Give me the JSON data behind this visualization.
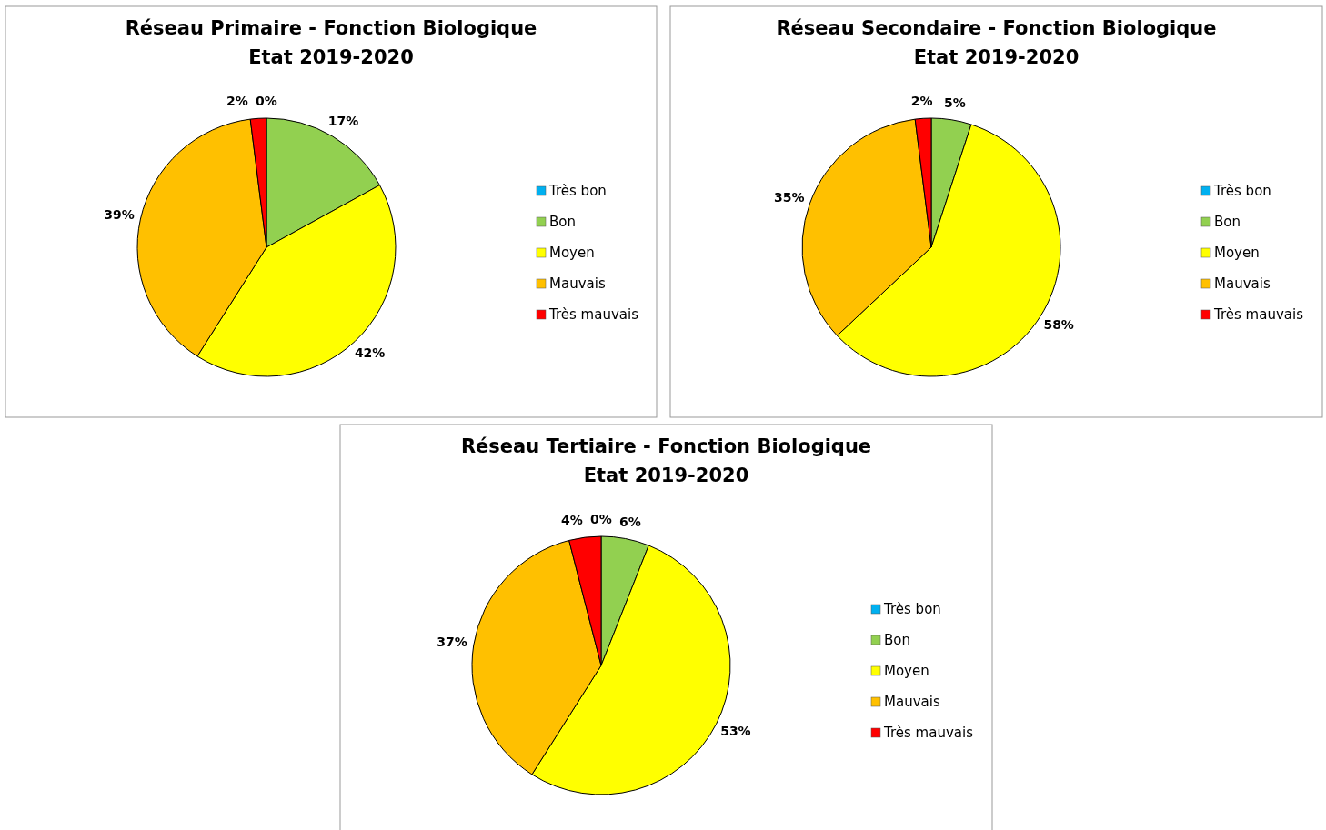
{
  "chart_data": [
    {
      "type": "pie",
      "title": "Réseau Primaire - Fonction Biologique",
      "subtitle": "Etat 2019-2020",
      "categories": [
        "Très bon",
        "Bon",
        "Moyen",
        "Mauvais",
        "Très mauvais"
      ],
      "values": [
        0,
        17,
        42,
        39,
        2
      ],
      "colors": [
        "#00b0f0",
        "#92d050",
        "#ffff00",
        "#ffc000",
        "#ff0000"
      ],
      "value_labels": [
        "0%",
        "17%",
        "42%",
        "39%",
        "2%"
      ],
      "legend": "right"
    },
    {
      "type": "pie",
      "title": "Réseau Secondaire - Fonction Biologique",
      "subtitle": "Etat 2019-2020",
      "categories": [
        "Très bon",
        "Bon",
        "Moyen",
        "Mauvais",
        "Très mauvais"
      ],
      "values": [
        0,
        5,
        58,
        35,
        2
      ],
      "colors": [
        "#00b0f0",
        "#92d050",
        "#ffff00",
        "#ffc000",
        "#ff0000"
      ],
      "value_labels": [
        null,
        "5%",
        "58%",
        "35%",
        "2%"
      ],
      "legend": "right"
    },
    {
      "type": "pie",
      "title": "Réseau Tertiaire - Fonction Biologique",
      "subtitle": "Etat 2019-2020",
      "categories": [
        "Très bon",
        "Bon",
        "Moyen",
        "Mauvais",
        "Très mauvais"
      ],
      "values": [
        0,
        6,
        53,
        37,
        4
      ],
      "colors": [
        "#00b0f0",
        "#92d050",
        "#ffff00",
        "#ffc000",
        "#ff0000"
      ],
      "value_labels": [
        "0%",
        "6%",
        "53%",
        "37%",
        "4%"
      ],
      "legend": "right"
    }
  ]
}
